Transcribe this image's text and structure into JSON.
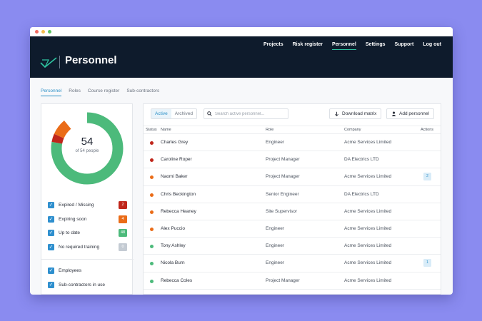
{
  "colors": {
    "header_bg": "#0e1b2c",
    "accent": "#2ec4a0",
    "link": "#2a8fc6",
    "expired": "#c0261b",
    "expiring": "#ea6c18",
    "up_to_date": "#4cba7b",
    "none": "#c4cbd3"
  },
  "window": {
    "controls": [
      "#f16b61",
      "#f5bd4f",
      "#5dc362"
    ]
  },
  "header": {
    "nav": [
      {
        "label": "Projects",
        "active": false
      },
      {
        "label": "Risk register",
        "active": false
      },
      {
        "label": "Personnel",
        "active": true
      },
      {
        "label": "Settings",
        "active": false
      },
      {
        "label": "Support",
        "active": false
      },
      {
        "label": "Log out",
        "active": false
      }
    ],
    "logo_icon": "checkmark-logo-icon",
    "title": "Personnel"
  },
  "subtabs": [
    {
      "label": "Personnel",
      "active": true
    },
    {
      "label": "Roles",
      "active": false
    },
    {
      "label": "Course register",
      "active": false
    },
    {
      "label": "Sub-contractors",
      "active": false
    }
  ],
  "summary": {
    "donut": {
      "total": "54",
      "subtitle": "of 54 people",
      "segments": [
        {
          "status": "Expired / Missing",
          "value": 2
        },
        {
          "status": "Expiring soon",
          "value": 4
        },
        {
          "status": "Up to date",
          "value": 48
        }
      ]
    },
    "filters": [
      {
        "label": "Expired / Missing",
        "count": "2",
        "color": "#c0261b",
        "checked": true
      },
      {
        "label": "Expiring soon",
        "count": "4",
        "color": "#ea6c18",
        "checked": true
      },
      {
        "label": "Up to date",
        "count": "48",
        "color": "#4cba7b",
        "checked": true
      },
      {
        "label": "No required training",
        "count": "0",
        "color": "#c4cbd3",
        "checked": true
      }
    ],
    "type_filters": [
      {
        "label": "Employees",
        "checked": true
      },
      {
        "label": "Sub-contractors in use",
        "checked": true
      }
    ]
  },
  "toolbar": {
    "toggle": [
      {
        "label": "Active",
        "active": true
      },
      {
        "label": "Archived",
        "active": false
      }
    ],
    "search_placeholder": "Search active personnel...",
    "download_label": "Download matrix",
    "download_icon": "download-arrow-icon",
    "add_label": "Add personnel",
    "add_icon": "user-icon",
    "search_icon": "search-icon"
  },
  "table": {
    "headers": {
      "status": "Status",
      "name": "Name",
      "role": "Role",
      "company": "Company",
      "actions": "Actions"
    },
    "rows": [
      {
        "status": "expired",
        "name": "Charles Grey",
        "role": "Engineer",
        "company": "Acme Services Limited",
        "action": ""
      },
      {
        "status": "expired",
        "name": "Caroline Roper",
        "role": "Project Manager",
        "company": "DA Electrics LTD",
        "action": ""
      },
      {
        "status": "expiring",
        "name": "Naomi Baker",
        "role": "Project Manager",
        "company": "Acme Services Limited",
        "action": "2"
      },
      {
        "status": "expiring",
        "name": "Chris Beckington",
        "role": "Senior Engineer",
        "company": "DA Electrics LTD",
        "action": ""
      },
      {
        "status": "expiring",
        "name": "Rebecca Heaney",
        "role": "Site Supervisor",
        "company": "Acme Services Limited",
        "action": ""
      },
      {
        "status": "expiring",
        "name": "Alex Puccio",
        "role": "Engineer",
        "company": "Acme Services Limited",
        "action": ""
      },
      {
        "status": "up_to_date",
        "name": "Tony Ashley",
        "role": "Engineer",
        "company": "Acme Services Limited",
        "action": ""
      },
      {
        "status": "up_to_date",
        "name": "Nicola Burn",
        "role": "Engineer",
        "company": "Acme Services Limited",
        "action": "1"
      },
      {
        "status": "up_to_date",
        "name": "Rebecca Coles",
        "role": "Project Manager",
        "company": "Acme Services Limited",
        "action": ""
      }
    ]
  }
}
